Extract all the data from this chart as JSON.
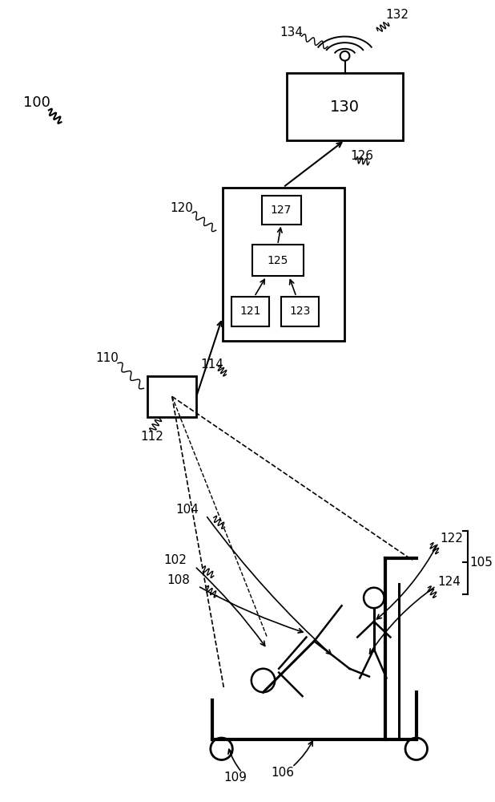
{
  "bg_color": "#ffffff",
  "line_color": "#000000",
  "label_100": "100",
  "label_110": "110",
  "label_112": "112",
  "label_114": "114",
  "label_120": "120",
  "label_121": "121",
  "label_123": "123",
  "label_125": "125",
  "label_127": "127",
  "label_126": "126",
  "label_130": "130",
  "label_132": "132",
  "label_134": "134",
  "label_102": "102",
  "label_104": "104",
  "label_105": "105",
  "label_106": "106",
  "label_108": "108",
  "label_109": "109",
  "label_122": "122",
  "label_124": "124"
}
